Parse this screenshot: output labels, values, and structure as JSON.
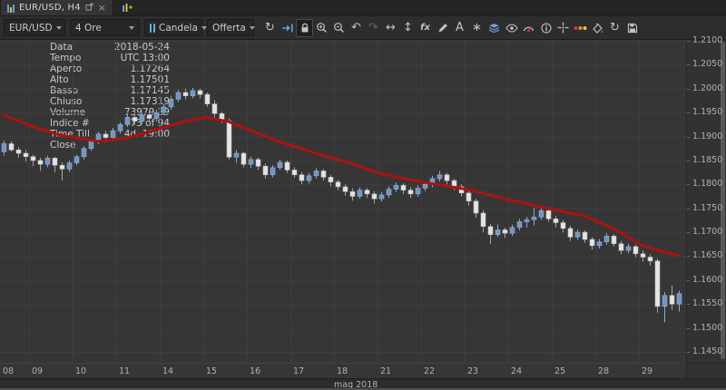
{
  "tab_bar": {
    "tab_label": "EUR/USD, H4"
  },
  "toolbar": {
    "symbol": "EUR/USD",
    "timeframe": "4 Ore",
    "chart_type": "Candela",
    "price_type": "Offerta",
    "buttons": [
      {
        "name": "sync"
      },
      {
        "name": "jump-to-latest"
      },
      {
        "name": "lock-scroll",
        "active": true
      },
      {
        "name": "zoom-in"
      },
      {
        "name": "zoom-out"
      },
      {
        "name": "undo"
      },
      {
        "name": "redo",
        "disabled": true
      },
      {
        "name": "horizontal-zoom"
      },
      {
        "name": "vertical-zoom"
      },
      {
        "name": "indicators"
      },
      {
        "name": "drawing-tools"
      },
      {
        "name": "text-tool"
      },
      {
        "name": "patterns"
      },
      {
        "name": "objects"
      },
      {
        "name": "visibility"
      },
      {
        "name": "sentiment"
      },
      {
        "name": "chart-info"
      },
      {
        "name": "crosshair"
      },
      {
        "name": "period-colors"
      },
      {
        "name": "chart-theme"
      },
      {
        "name": "reset-view"
      },
      {
        "name": "save-template"
      }
    ]
  },
  "info_panel": {
    "rows": [
      {
        "label": "Data",
        "value": "2018-05-24"
      },
      {
        "label": "Tempo",
        "value": "UTC 13:00"
      },
      {
        "label": "Aperto",
        "value": "1.17264"
      },
      {
        "label": "Alto",
        "value": "1.17501"
      },
      {
        "label": "Basso",
        "value": "1.17145"
      },
      {
        "label": "Chiuso",
        "value": "1.17319"
      },
      {
        "label": "Volume",
        "value": "73979.39"
      },
      {
        "label": "Indice #",
        "value": "73 of 94"
      },
      {
        "label": "Time Till Close",
        "value": "4d. 19:00"
      }
    ]
  },
  "chart_data": {
    "type": "candlestick",
    "symbol": "EUR/USD",
    "period": "H4",
    "y_axis": {
      "min": 1.145,
      "max": 1.21,
      "step": 0.005
    },
    "x_axis": {
      "day_labels": [
        "08",
        "09",
        "10",
        "11",
        "14",
        "15",
        "16",
        "17",
        "18",
        "21",
        "22",
        "23",
        "24",
        "25",
        "28",
        "29"
      ],
      "day_start_indices": [
        0,
        4,
        10,
        16,
        22,
        28,
        34,
        40,
        46,
        52,
        58,
        64,
        70,
        76,
        82,
        88
      ],
      "month_label": "mag 2018"
    },
    "colors": {
      "bull": "#7495c2",
      "bull_stroke": "#8fafd6",
      "bear": "#e4e4e4",
      "bear_stroke": "#bdbdbd",
      "bull_wick": "#8fa9c9",
      "bear_wick": "#a5a5a5",
      "ma": "#ad1212",
      "grid": "#3e3e3e",
      "bg": "#363636"
    },
    "ma_points": [
      [
        0,
        1.1945
      ],
      [
        4,
        1.1921
      ],
      [
        8,
        1.1902
      ],
      [
        13,
        1.189
      ],
      [
        17,
        1.1897
      ],
      [
        21,
        1.1914
      ],
      [
        25,
        1.1932
      ],
      [
        28,
        1.194
      ],
      [
        31,
        1.1931
      ],
      [
        34,
        1.1913
      ],
      [
        38,
        1.1889
      ],
      [
        43,
        1.1865
      ],
      [
        48,
        1.1843
      ],
      [
        52,
        1.1822
      ],
      [
        58,
        1.1804
      ],
      [
        64,
        1.1789
      ],
      [
        69,
        1.177
      ],
      [
        74,
        1.1753
      ],
      [
        80,
        1.1734
      ],
      [
        84,
        1.1708
      ],
      [
        88,
        1.1672
      ],
      [
        91,
        1.1659
      ],
      [
        93,
        1.1652
      ]
    ],
    "candles": [
      [
        1.1868,
        1.1892,
        1.186,
        1.1885
      ],
      [
        1.1885,
        1.189,
        1.1868,
        1.1872
      ],
      [
        1.1872,
        1.1878,
        1.1856,
        1.1865
      ],
      [
        1.1865,
        1.1872,
        1.1848,
        1.1858
      ],
      [
        1.1858,
        1.1862,
        1.1838,
        1.185
      ],
      [
        1.185,
        1.1856,
        1.1828,
        1.1842
      ],
      [
        1.1842,
        1.186,
        1.1836,
        1.1855
      ],
      [
        1.1855,
        1.1858,
        1.1825,
        1.184
      ],
      [
        1.184,
        1.1846,
        1.1808,
        1.1832
      ],
      [
        1.1832,
        1.185,
        1.1826,
        1.1845
      ],
      [
        1.1845,
        1.1862,
        1.184,
        1.1858
      ],
      [
        1.1858,
        1.188,
        1.1852,
        1.1875
      ],
      [
        1.1875,
        1.1895,
        1.187,
        1.189
      ],
      [
        1.189,
        1.191,
        1.1884,
        1.1905
      ],
      [
        1.1905,
        1.1912,
        1.1888,
        1.1898
      ],
      [
        1.1898,
        1.1918,
        1.1892,
        1.1912
      ],
      [
        1.1912,
        1.193,
        1.1906,
        1.1925
      ],
      [
        1.1925,
        1.1946,
        1.192,
        1.194
      ],
      [
        1.194,
        1.1945,
        1.1924,
        1.1932
      ],
      [
        1.1932,
        1.195,
        1.1926,
        1.1945
      ],
      [
        1.1945,
        1.1952,
        1.193,
        1.1938
      ],
      [
        1.1938,
        1.1956,
        1.1932,
        1.195
      ],
      [
        1.195,
        1.1968,
        1.1944,
        1.1962
      ],
      [
        1.1962,
        1.1984,
        1.1956,
        1.1978
      ],
      [
        1.1978,
        1.1998,
        1.1972,
        1.1992
      ],
      [
        1.1992,
        1.2,
        1.1978,
        1.1985
      ],
      [
        1.1985,
        1.2002,
        1.198,
        1.1996
      ],
      [
        1.1996,
        1.2,
        1.198,
        1.1988
      ],
      [
        1.1988,
        1.1992,
        1.1962,
        1.1968
      ],
      [
        1.1968,
        1.1976,
        1.194,
        1.1948
      ],
      [
        1.1948,
        1.1952,
        1.1928,
        1.1933
      ],
      [
        1.1933,
        1.1938,
        1.1852,
        1.1857
      ],
      [
        1.1857,
        1.1872,
        1.1845,
        1.1865
      ],
      [
        1.1865,
        1.1868,
        1.1836,
        1.1842
      ],
      [
        1.1842,
        1.1858,
        1.1834,
        1.1852
      ],
      [
        1.1852,
        1.1856,
        1.183,
        1.1838
      ],
      [
        1.1838,
        1.1844,
        1.1812,
        1.182
      ],
      [
        1.182,
        1.184,
        1.1815,
        1.1835
      ],
      [
        1.1835,
        1.1852,
        1.183,
        1.1846
      ],
      [
        1.1846,
        1.185,
        1.1824,
        1.183
      ],
      [
        1.183,
        1.1836,
        1.1814,
        1.182
      ],
      [
        1.182,
        1.1826,
        1.18,
        1.1808
      ],
      [
        1.1808,
        1.1824,
        1.1802,
        1.1818
      ],
      [
        1.1818,
        1.1834,
        1.1812,
        1.1828
      ],
      [
        1.1828,
        1.1832,
        1.1808,
        1.1815
      ],
      [
        1.1815,
        1.182,
        1.1796,
        1.1805
      ],
      [
        1.1805,
        1.181,
        1.1788,
        1.1795
      ],
      [
        1.1795,
        1.18,
        1.1776,
        1.1785
      ],
      [
        1.1785,
        1.1792,
        1.1766,
        1.1775
      ],
      [
        1.1775,
        1.1794,
        1.177,
        1.1788
      ],
      [
        1.1788,
        1.1792,
        1.1772,
        1.178
      ],
      [
        1.178,
        1.1786,
        1.176,
        1.177
      ],
      [
        1.177,
        1.1784,
        1.1764,
        1.1778
      ],
      [
        1.1778,
        1.1796,
        1.1772,
        1.179
      ],
      [
        1.179,
        1.1804,
        1.1784,
        1.1798
      ],
      [
        1.1798,
        1.1802,
        1.178,
        1.1788
      ],
      [
        1.1788,
        1.1794,
        1.1772,
        1.178
      ],
      [
        1.178,
        1.1798,
        1.1774,
        1.1792
      ],
      [
        1.1792,
        1.1806,
        1.1786,
        1.18
      ],
      [
        1.18,
        1.1818,
        1.1794,
        1.1812
      ],
      [
        1.1812,
        1.1828,
        1.1806,
        1.182
      ],
      [
        1.182,
        1.1824,
        1.18,
        1.1808
      ],
      [
        1.1808,
        1.1812,
        1.1788,
        1.1795
      ],
      [
        1.1795,
        1.18,
        1.1775,
        1.1782
      ],
      [
        1.1782,
        1.1786,
        1.1756,
        1.1765
      ],
      [
        1.1765,
        1.177,
        1.173,
        1.174
      ],
      [
        1.174,
        1.1746,
        1.17,
        1.1712
      ],
      [
        1.1712,
        1.1718,
        1.1676,
        1.1695
      ],
      [
        1.1695,
        1.1716,
        1.169,
        1.1705
      ],
      [
        1.1705,
        1.171,
        1.1688,
        1.1698
      ],
      [
        1.1698,
        1.1716,
        1.1692,
        1.171
      ],
      [
        1.171,
        1.1728,
        1.1704,
        1.1722
      ],
      [
        1.1722,
        1.1732,
        1.171,
        1.17264
      ],
      [
        1.17264,
        1.17501,
        1.17145,
        1.17319
      ],
      [
        1.17319,
        1.175,
        1.1726,
        1.1745
      ],
      [
        1.1745,
        1.1752,
        1.1722,
        1.1728
      ],
      [
        1.1728,
        1.1734,
        1.171,
        1.172
      ],
      [
        1.172,
        1.1726,
        1.17,
        1.1708
      ],
      [
        1.1708,
        1.1714,
        1.1682,
        1.169
      ],
      [
        1.169,
        1.1706,
        1.1684,
        1.17
      ],
      [
        1.17,
        1.1704,
        1.1678,
        1.1685
      ],
      [
        1.1685,
        1.169,
        1.1664,
        1.1672
      ],
      [
        1.1672,
        1.1686,
        1.1666,
        1.168
      ],
      [
        1.168,
        1.1698,
        1.1674,
        1.1692
      ],
      [
        1.1692,
        1.1696,
        1.167,
        1.1676
      ],
      [
        1.1676,
        1.1682,
        1.1654,
        1.1662
      ],
      [
        1.1662,
        1.1676,
        1.1656,
        1.167
      ],
      [
        1.167,
        1.1674,
        1.1648,
        1.1655
      ],
      [
        1.1655,
        1.1662,
        1.1638,
        1.1648
      ],
      [
        1.1648,
        1.1654,
        1.163,
        1.164
      ],
      [
        1.164,
        1.1645,
        1.1532,
        1.1545
      ],
      [
        1.1545,
        1.1575,
        1.1512,
        1.1568
      ],
      [
        1.1568,
        1.1588,
        1.1538,
        1.155
      ],
      [
        1.155,
        1.1578,
        1.1534,
        1.1572
      ]
    ]
  }
}
